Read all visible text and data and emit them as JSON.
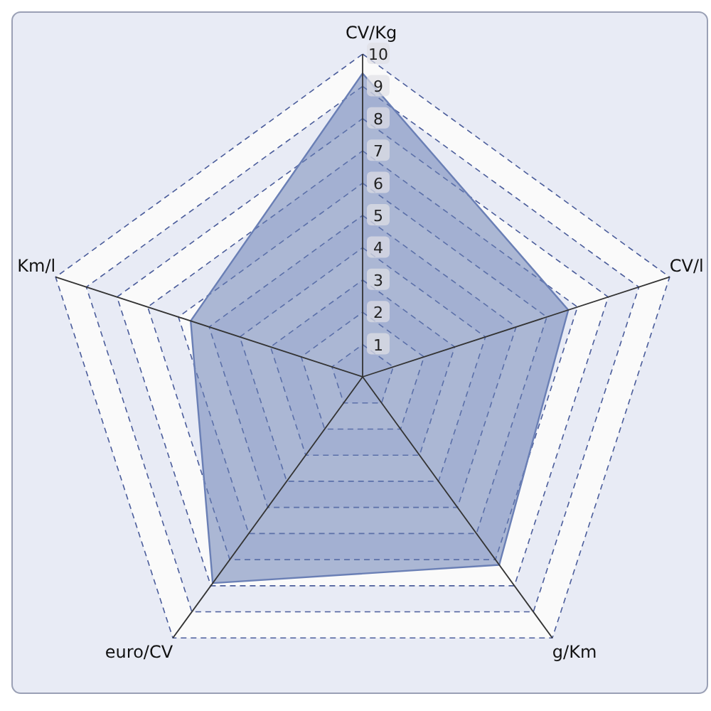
{
  "chart_data": {
    "type": "radar",
    "categories": [
      "CV/Kg",
      "CV/l",
      "g/Km",
      "euro/CV",
      "Km/l"
    ],
    "ylim": [
      0,
      10
    ],
    "yticks": [
      1,
      2,
      3,
      4,
      5,
      6,
      7,
      8,
      9,
      10
    ],
    "grid": true,
    "series": [
      {
        "color": "#6a7fb5",
        "values": [
          9.4,
          6.7,
          7.2,
          7.9,
          5.6
        ]
      }
    ]
  }
}
